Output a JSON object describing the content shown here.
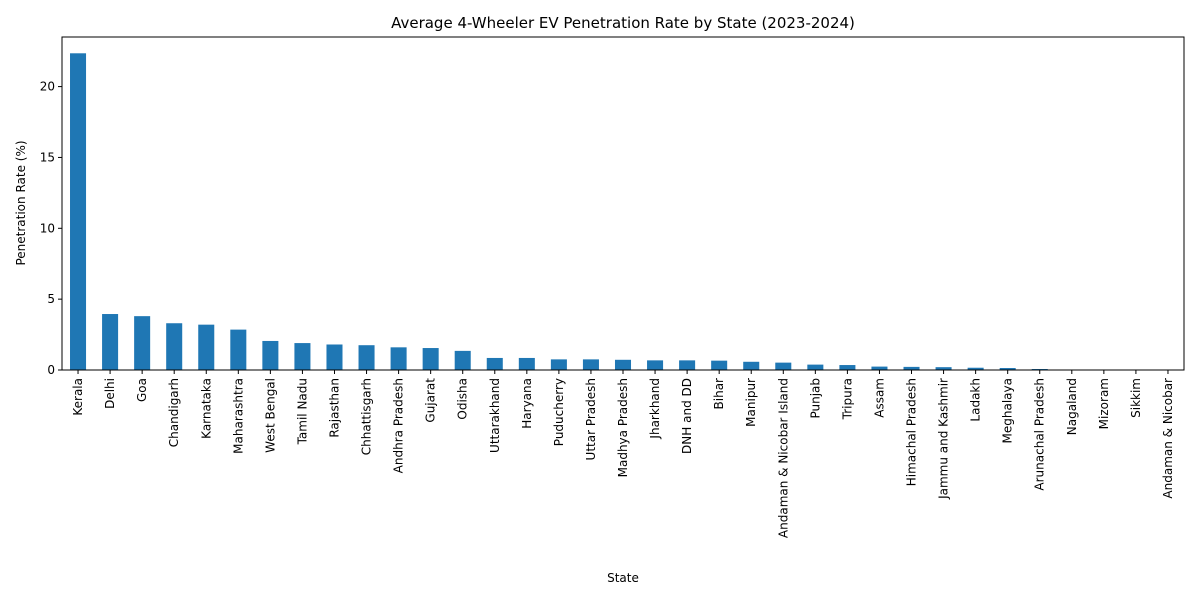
{
  "chart_data": {
    "type": "bar",
    "title": "Average 4-Wheeler EV Penetration Rate by State (2023-2024)",
    "xlabel": "State",
    "ylabel": "Penetration Rate (%)",
    "ylim": [
      0,
      23.5
    ],
    "yticks": [
      0,
      5,
      10,
      15,
      20
    ],
    "grid": false,
    "color": "#1f77b4",
    "categories": [
      "Kerala",
      "Delhi",
      "Goa",
      "Chandigarh",
      "Karnataka",
      "Maharashtra",
      "West Bengal",
      "Tamil Nadu",
      "Rajasthan",
      "Chhattisgarh",
      "Andhra Pradesh",
      "Gujarat",
      "Odisha",
      "Uttarakhand",
      "Haryana",
      "Puducherry",
      "Uttar Pradesh",
      "Madhya Pradesh",
      "Jharkhand",
      "DNH and DD",
      "Bihar",
      "Manipur",
      "Andaman & Nicobar Island",
      "Punjab",
      "Tripura",
      "Assam",
      "Himachal Pradesh",
      "Jammu and Kashmir",
      "Ladakh",
      "Meghalaya",
      "Arunachal Pradesh",
      "Nagaland",
      "Mizoram",
      "Sikkim",
      "Andaman & Nicobar"
    ],
    "values": [
      22.35,
      3.95,
      3.8,
      3.3,
      3.2,
      2.85,
      2.05,
      1.9,
      1.8,
      1.75,
      1.6,
      1.55,
      1.35,
      0.85,
      0.85,
      0.75,
      0.75,
      0.72,
      0.68,
      0.68,
      0.66,
      0.58,
      0.52,
      0.38,
      0.35,
      0.24,
      0.22,
      0.2,
      0.16,
      0.14,
      0.07,
      0.0,
      0.0,
      0.0,
      0.0
    ]
  }
}
